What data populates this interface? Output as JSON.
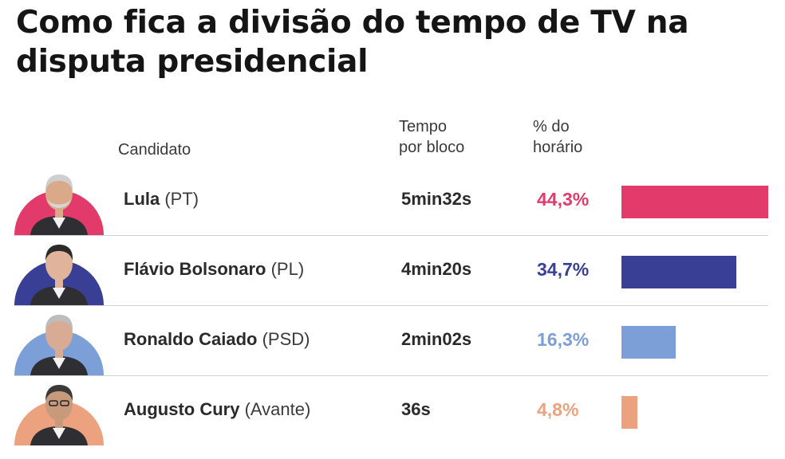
{
  "title": "Como fica a divisão do tempo de TV na disputa presidencial",
  "headers": {
    "candidate": "Candidato",
    "time": "Tempo\npor bloco",
    "share": "% do\nhorário"
  },
  "chart_data": {
    "type": "bar",
    "orientation": "horizontal",
    "title": "Como fica a divisão do tempo de TV na disputa presidencial",
    "xlim": [
      0,
      44.3
    ],
    "categories": [
      "Lula (PT)",
      "Flávio Bolsonaro (PL)",
      "Ronaldo Caiado (PSD)",
      "Augusto Cury (Avante)"
    ],
    "values": [
      44.3,
      34.7,
      16.3,
      4.8
    ],
    "rows": [
      {
        "candidate": "Lula",
        "party": "(PT)",
        "time": "5min32s",
        "percent_label": "44,3%",
        "value": 44.3,
        "color": "#e23a6a"
      },
      {
        "candidate": "Flávio Bolsonaro",
        "party": "(PL)",
        "time": "4min20s",
        "percent_label": "34,7%",
        "value": 34.7,
        "color": "#393f95"
      },
      {
        "candidate": "Ronaldo Caiado",
        "party": "(PSD)",
        "time": "2min02s",
        "percent_label": "16,3%",
        "value": 16.3,
        "color": "#7b9fd6"
      },
      {
        "candidate": "Augusto Cury",
        "party": "(Avante)",
        "time": "36s",
        "percent_label": "4,8%",
        "value": 4.8,
        "color": "#eca17f"
      }
    ]
  }
}
